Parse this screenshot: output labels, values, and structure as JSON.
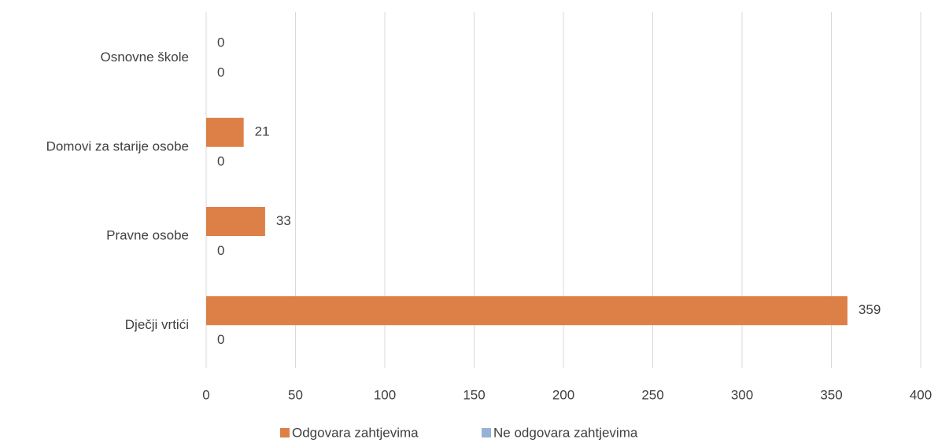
{
  "chart_data": {
    "type": "bar",
    "orientation": "horizontal",
    "categories": [
      "Osnovne škole",
      "Domovi za starije osobe",
      "Pravne osobe",
      "Dječji vrtići"
    ],
    "series": [
      {
        "name": "Odgovara zahtjevima",
        "color": "#dd8047",
        "values": [
          0,
          21,
          33,
          359
        ]
      },
      {
        "name": "Ne odgovara zahtjevima",
        "color": "#95b3d7",
        "values": [
          0,
          0,
          0,
          0
        ]
      }
    ],
    "xlim": [
      0,
      400
    ],
    "xticks": [
      0,
      50,
      100,
      150,
      200,
      250,
      300,
      350,
      400
    ],
    "grid": true,
    "legend": "bottom"
  }
}
